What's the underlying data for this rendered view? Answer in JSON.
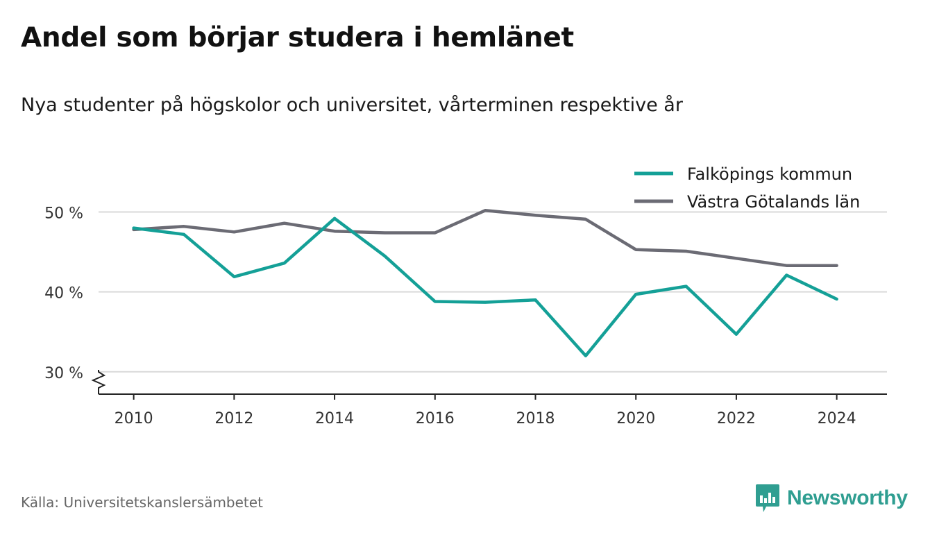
{
  "header": {
    "title": "Andel som börjar studera i hemlänet",
    "subtitle": "Nya studenter på högskolor och universitet, vårterminen respektive år"
  },
  "chart_data": {
    "type": "line",
    "x": [
      2010,
      2011,
      2012,
      2013,
      2014,
      2015,
      2016,
      2017,
      2018,
      2019,
      2020,
      2021,
      2022,
      2023,
      2024
    ],
    "xticks": [
      2010,
      2012,
      2014,
      2016,
      2018,
      2020,
      2022,
      2024
    ],
    "xtick_labels": [
      "2010",
      "2012",
      "2014",
      "2016",
      "2018",
      "2020",
      "2022",
      "2024"
    ],
    "yticks": [
      30,
      40,
      50
    ],
    "ytick_labels": [
      "30 %",
      "40 %",
      "50 %"
    ],
    "xlim": [
      2009.3,
      2025.0
    ],
    "ylim": [
      27.2,
      55
    ],
    "y_axis_break": true,
    "grid": true,
    "legend": "top-right",
    "series": [
      {
        "name": "Falköpings kommun",
        "color": "#14a097",
        "values": [
          48.0,
          47.2,
          41.9,
          43.6,
          49.2,
          44.5,
          38.8,
          38.7,
          39.0,
          32.0,
          39.7,
          40.7,
          34.7,
          42.1,
          39.1
        ]
      },
      {
        "name": "Västra Götalands län",
        "color": "#6b6b74",
        "values": [
          47.8,
          48.2,
          47.5,
          48.6,
          47.6,
          47.4,
          47.4,
          50.2,
          49.6,
          49.1,
          45.3,
          45.1,
          44.2,
          43.3,
          43.3
        ]
      }
    ]
  },
  "footer": {
    "source": "Källa: Universitetskanslersämbetet",
    "brand": "Newsworthy",
    "brand_color": "#2f9e91"
  }
}
